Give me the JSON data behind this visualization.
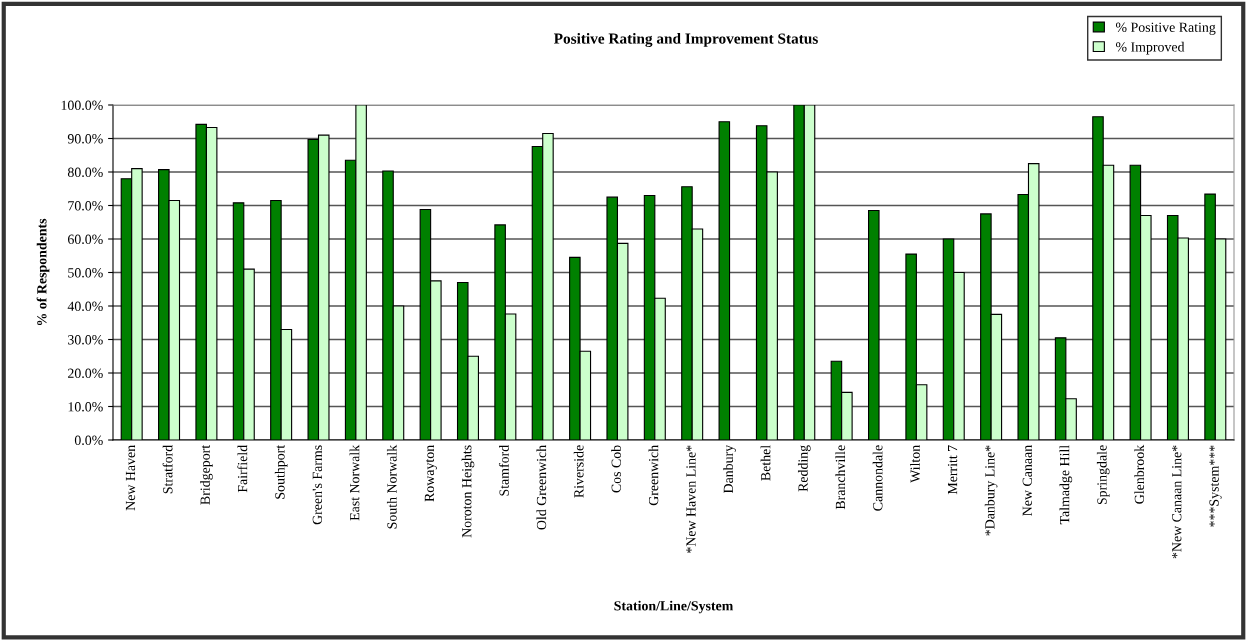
{
  "chart_data": {
    "type": "bar",
    "title": "Positive Rating and Improvement Status",
    "xlabel": "Station/Line/System",
    "ylabel": "% of Respondents",
    "categories": [
      "New Haven",
      "Stratford",
      "Bridgeport",
      "Fairfield",
      "Southport",
      "Green's Farms",
      "East Norwalk",
      "South Norwalk",
      "Rowayton",
      "Noroton Heights",
      "Stamford",
      "Old Greenwich",
      "Riverside",
      "Cos Cob",
      "Greenwich",
      "*New Haven Line*",
      "Danbury",
      "Bethel",
      "Redding",
      "Branchville",
      "Cannondale",
      "Wilton",
      "Merritt 7",
      "*Danbury Line*",
      "New Canaan",
      "Talmadge Hill",
      "Springdale",
      "Glenbrook",
      "*New Canaan Line*",
      "***System***"
    ],
    "series": [
      {
        "name": "% Positive Rating",
        "color": "#008000",
        "values": [
          78,
          80.7,
          94.2,
          70.8,
          71.5,
          89.7,
          83.5,
          80.3,
          68.8,
          47,
          64.2,
          87.6,
          54.5,
          72.5,
          73,
          75.6,
          95,
          93.8,
          100,
          23.5,
          68.5,
          55.5,
          60,
          67.5,
          73.3,
          30.5,
          96.5,
          82,
          67,
          73.4
        ]
      },
      {
        "name": "% Improved",
        "color": "#ccffcc",
        "values": [
          81,
          71.5,
          93.3,
          51,
          33,
          91,
          100,
          40,
          47.5,
          25,
          37.6,
          91.5,
          26.5,
          58.7,
          42.3,
          63,
          null,
          80,
          100,
          14.2,
          null,
          16.5,
          50,
          37.5,
          82.5,
          12.3,
          82,
          67,
          60.3,
          60
        ]
      }
    ],
    "ylim": [
      0,
      100
    ],
    "yticks": [
      {
        "value": 0,
        "label": "0.0%"
      },
      {
        "value": 10,
        "label": "10.0%"
      },
      {
        "value": 20,
        "label": "20.0%"
      },
      {
        "value": 30,
        "label": "30.0%"
      },
      {
        "value": 40,
        "label": "40.0%"
      },
      {
        "value": 50,
        "label": "50.0%"
      },
      {
        "value": 60,
        "label": "60.0%"
      },
      {
        "value": 70,
        "label": "70.0%"
      },
      {
        "value": 80,
        "label": "80.0%"
      },
      {
        "value": 90,
        "label": "90.0%"
      },
      {
        "value": 100,
        "label": "100.0%"
      }
    ],
    "grid": "y",
    "legend": "top right"
  }
}
